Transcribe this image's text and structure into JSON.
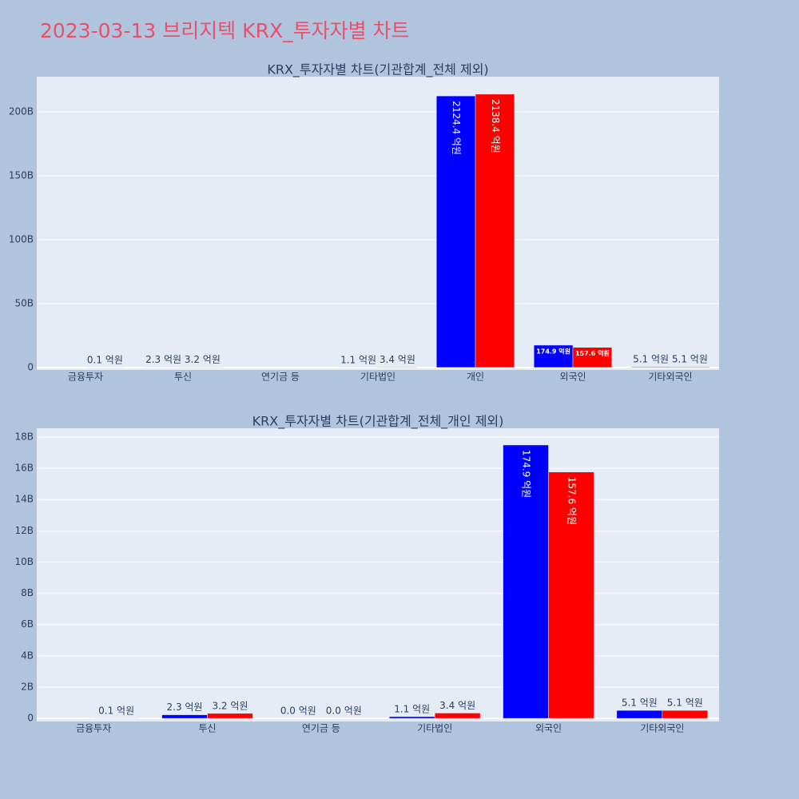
{
  "title": "2023-03-13 브리지텍 KRX_투자자별 차트",
  "chart_data": [
    {
      "type": "bar",
      "title": "KRX_투자자별 차트(기관합계_전체 제외)",
      "categories": [
        "금융투자",
        "투신",
        "연기금 등",
        "기타법인",
        "개인",
        "외국인",
        "기타외국인"
      ],
      "series": [
        {
          "color": "#0000ff",
          "values": [
            null,
            0.23,
            0,
            0.11,
            212.44,
            17.49,
            0.51
          ],
          "value_labels": [
            null,
            "2.3 억원",
            null,
            "1.1 억원",
            "2124.4 억원",
            "174.9 억원",
            "5.1 억원"
          ]
        },
        {
          "color": "#ff0000",
          "values": [
            0.01,
            0.32,
            0,
            0.34,
            213.84,
            15.76,
            0.51
          ],
          "value_labels": [
            "0.1 억원",
            "3.2 억원",
            null,
            "3.4 억원",
            "2138.4 억원",
            "157.6 억원",
            "5.1 억원"
          ]
        }
      ],
      "ylim": [
        -1.9,
        227.5
      ],
      "yticks": [
        0,
        {
          "value": 50,
          "label": "50B"
        },
        {
          "value": 100,
          "label": "100B"
        },
        {
          "value": 150,
          "label": "150B"
        },
        {
          "value": 200,
          "label": "200B"
        }
      ],
      "grid": true
    },
    {
      "type": "bar",
      "title": "KRX_투자자별 차트(기관합계_전체_개인 제외)",
      "categories": [
        "금융투자",
        "투신",
        "연기금 등",
        "기타법인",
        "외국인",
        "기타외국인"
      ],
      "series": [
        {
          "color": "#0000ff",
          "values": [
            null,
            0.23,
            0,
            0.11,
            17.49,
            0.51
          ],
          "value_labels": [
            null,
            "2.3 억원",
            "0.0 억원",
            "1.1 억원",
            "174.9 억원",
            "5.1 억원"
          ]
        },
        {
          "color": "#ff0000",
          "values": [
            0.01,
            0.32,
            0,
            0.34,
            15.76,
            0.51
          ],
          "value_labels": [
            "0.1 억원",
            "3.2 억원",
            "0.0 억원",
            "3.4 억원",
            "157.6 억원",
            "5.1 억원"
          ]
        }
      ],
      "ylim": [
        -0.2,
        18.56
      ],
      "yticks": [
        0,
        {
          "value": 2,
          "label": "2B"
        },
        {
          "value": 4,
          "label": "4B"
        },
        {
          "value": 6,
          "label": "6B"
        },
        {
          "value": 8,
          "label": "8B"
        },
        {
          "value": 10,
          "label": "10B"
        },
        {
          "value": 12,
          "label": "12B"
        },
        {
          "value": 14,
          "label": "14B"
        },
        {
          "value": 16,
          "label": "16B"
        },
        {
          "value": 18,
          "label": "18B"
        }
      ],
      "grid": true
    }
  ]
}
